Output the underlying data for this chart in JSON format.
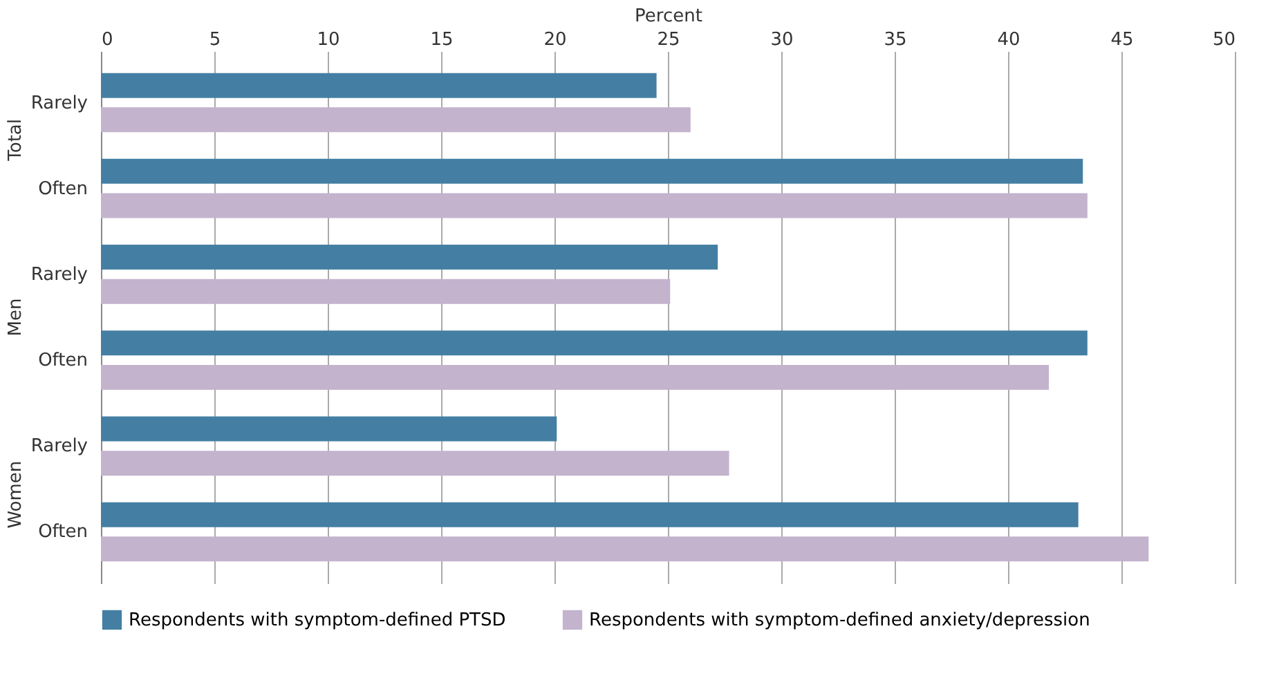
{
  "chart_data": {
    "type": "bar",
    "orientation": "horizontal",
    "xlabel": "Percent",
    "categories": [
      "Rarely",
      "Often",
      "Rarely",
      "Often",
      "Rarely",
      "Often"
    ],
    "annotations": [
      "Total",
      "Men",
      "Women"
    ],
    "series": [
      {
        "name": "Respondents with symptom-defined PTSD",
        "color": "#447fa3",
        "values": [
          24.5,
          43.3,
          27.2,
          43.5,
          20.1,
          43.1
        ]
      },
      {
        "name": "Respondents with symptom-defined anxiety/depression",
        "color": "#c3b3cd",
        "values": [
          26.0,
          43.5,
          25.1,
          41.8,
          27.7,
          46.2
        ]
      }
    ],
    "xlim": [
      0,
      50
    ],
    "xticks": [
      0,
      5,
      10,
      15,
      20,
      25,
      30,
      35,
      40,
      45,
      50
    ],
    "grid": "x",
    "legend": "bottom"
  }
}
